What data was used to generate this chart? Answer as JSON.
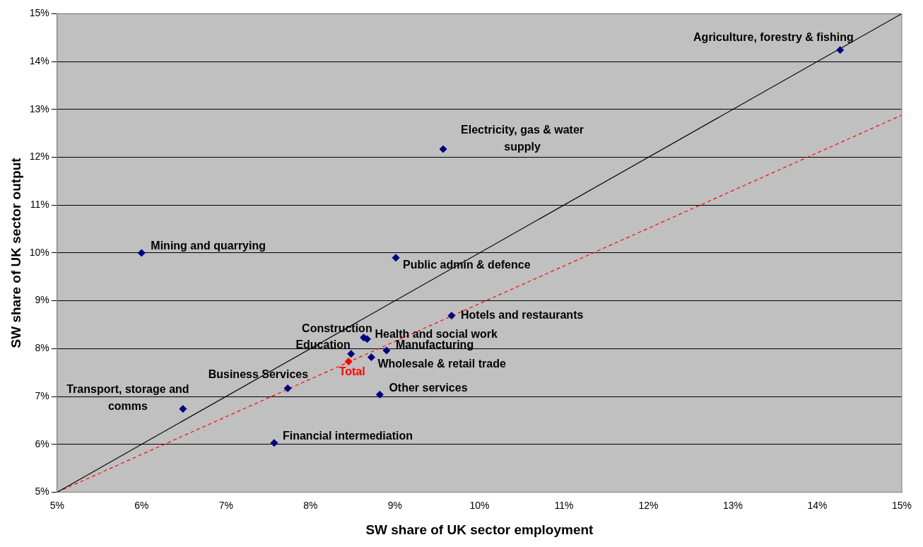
{
  "chart_data": {
    "type": "scatter",
    "xlabel": "SW share of UK sector employment",
    "ylabel": "SW share of UK sector output",
    "xlim": [
      5,
      15
    ],
    "xticks": [
      {
        "value": 5,
        "label": "5%"
      },
      {
        "value": 6,
        "label": "6%"
      },
      {
        "value": 7,
        "label": "7%"
      },
      {
        "value": 8,
        "label": "8%"
      },
      {
        "value": 9,
        "label": "9%"
      },
      {
        "value": 10,
        "label": "10%"
      },
      {
        "value": 11,
        "label": "11%"
      },
      {
        "value": 12,
        "label": "12%"
      },
      {
        "value": 13,
        "label": "13%"
      },
      {
        "value": 14,
        "label": "14%"
      },
      {
        "value": 15,
        "label": "15%"
      }
    ],
    "ylim": [
      5,
      15
    ],
    "yticks": [
      {
        "value": 5,
        "label": "5%"
      },
      {
        "value": 6,
        "label": "6%"
      },
      {
        "value": 7,
        "label": "7%"
      },
      {
        "value": 8,
        "label": "8%"
      },
      {
        "value": 9,
        "label": "9%"
      },
      {
        "value": 10,
        "label": "10%"
      },
      {
        "value": 11,
        "label": "11%"
      },
      {
        "value": 12,
        "label": "12%"
      },
      {
        "value": 13,
        "label": "13%"
      },
      {
        "value": 14,
        "label": "14%"
      },
      {
        "value": 15,
        "label": "15%"
      }
    ],
    "grid": "y",
    "legend": false,
    "marker": "diamond",
    "series": [
      {
        "color": "#000080",
        "x": [
          14.27,
          9.57,
          6.0,
          9.01,
          9.67,
          8.63,
          8.67,
          8.9,
          8.48,
          8.72,
          7.73,
          8.82,
          6.49,
          7.57
        ],
        "values": [
          14.24,
          12.17,
          10.0,
          9.9,
          8.69,
          8.23,
          8.2,
          7.96,
          7.89,
          7.82,
          7.17,
          7.04,
          6.74,
          6.03
        ],
        "value_labels": [
          "Agriculture, forestry & fishing",
          "Electricity, gas & water supply",
          "Mining and quarrying",
          "Public admin & defence",
          "Hotels and restaurants",
          "Construction",
          "Health and social work",
          "Manufacturing",
          "Education",
          "Wholesale & retail trade",
          "Business Services",
          "Other services",
          "Transport, storage and comms",
          "Financial intermediation"
        ]
      },
      {
        "color": "#ff0000",
        "x": [
          8.45
        ],
        "values": [
          7.73
        ],
        "value_labels": [
          "Total"
        ]
      },
      {
        "type": "line",
        "color": "#000000",
        "line_style": "solid",
        "marker": "none",
        "x": [
          5,
          15
        ],
        "values": [
          5,
          15
        ]
      },
      {
        "type": "line",
        "color": "#ff0000",
        "line_style": "dashed",
        "marker": "none",
        "x": [
          5,
          15
        ],
        "values": [
          5,
          12.88
        ]
      }
    ]
  }
}
